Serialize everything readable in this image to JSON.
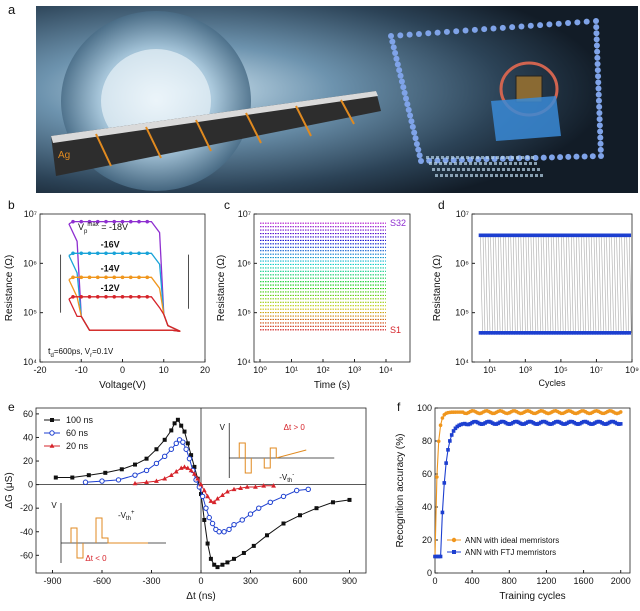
{
  "panels": {
    "a": {
      "label": "a",
      "left_text": "Ag"
    },
    "b": {
      "label": "b"
    },
    "c": {
      "label": "c"
    },
    "d": {
      "label": "d"
    },
    "e": {
      "label": "e"
    },
    "f": {
      "label": "f"
    }
  },
  "chart_data": [
    {
      "id": "b",
      "type": "line",
      "xlabel": "Voltage(V)",
      "ylabel": "Resistance (Ω)",
      "yscale": "log",
      "xlim": [
        -20,
        20
      ],
      "ylim": [
        10000,
        10000000
      ],
      "xticks": [
        "-20",
        "-10",
        "0",
        "10",
        "20"
      ],
      "yticks": [
        "10⁴",
        "10⁵",
        "10⁶",
        "10⁷"
      ],
      "annotations": [
        "V",
        "p",
        "max",
        " = -18V",
        "-16V",
        "-14V",
        "-12V",
        "t",
        "d",
        "=600ps, V",
        "r",
        "=0.1V"
      ],
      "series": [
        {
          "name": "-18V",
          "color": "#8e2fd0",
          "high": 7000000,
          "low": 42000
        },
        {
          "name": "-16V",
          "color": "#19a3d8",
          "high": 1600000,
          "low": 42000
        },
        {
          "name": "-14V",
          "color": "#f0961d",
          "high": 520000,
          "low": 42000
        },
        {
          "name": "-12V",
          "color": "#d6232a",
          "high": 210000,
          "low": 42000
        }
      ]
    },
    {
      "id": "c",
      "type": "scatter",
      "xlabel": "Time (s)",
      "ylabel": "Resistance (Ω)",
      "xscale": "log",
      "yscale": "log",
      "xlim": [
        1,
        10000
      ],
      "ylim": [
        10000,
        10000000
      ],
      "xticks": [
        "10⁰",
        "10¹",
        "10²",
        "10³",
        "10⁴"
      ],
      "yticks": [
        "10⁴",
        "10⁵",
        "10⁶",
        "10⁷"
      ],
      "levels": 32,
      "r_min": 45000,
      "r_max": 6500000,
      "labels_top": "S32",
      "labels_bottom": "S1"
    },
    {
      "id": "d",
      "type": "scatter",
      "xlabel": "Cycles",
      "ylabel": "Resistance (Ω)",
      "xscale": "log",
      "yscale": "log",
      "xlim": [
        1,
        1000000000
      ],
      "ylim": [
        10000,
        10000000
      ],
      "xticks": [
        "10¹",
        "10³",
        "10⁵",
        "10⁷",
        "10⁹"
      ],
      "yticks": [
        "10⁴",
        "10⁵",
        "10⁶",
        "10⁷"
      ],
      "r_high": 3700000,
      "r_low": 39000
    },
    {
      "id": "e",
      "type": "line",
      "xlabel": "Δt (ns)",
      "ylabel": "ΔG (μS)",
      "xlim": [
        -1000,
        1000
      ],
      "ylim": [
        -75,
        65
      ],
      "xticks": [
        "-900",
        "-600",
        "-300",
        "0",
        "300",
        "600",
        "900"
      ],
      "yticks": [
        "-60",
        "-40",
        "-20",
        "0",
        "20",
        "40",
        "60"
      ],
      "inset_texts": [
        "V",
        "Δt > 0",
        "V",
        "th",
        "-",
        "V",
        "V",
        "th",
        "+",
        "Δt < 0"
      ],
      "series": [
        {
          "name": "100 ns",
          "color": "#111111",
          "marker": "square",
          "x": [
            -880,
            -780,
            -680,
            -580,
            -480,
            -400,
            -330,
            -270,
            -220,
            -180,
            -160,
            -140,
            -120,
            -100,
            -80,
            -60,
            -40,
            -20,
            0,
            20,
            40,
            60,
            80,
            100,
            130,
            160,
            200,
            260,
            320,
            400,
            500,
            600,
            700,
            800,
            900
          ],
          "y": [
            6,
            6,
            8,
            10,
            13,
            17,
            22,
            30,
            38,
            46,
            52,
            55,
            50,
            45,
            35,
            25,
            15,
            5,
            -8,
            -30,
            -50,
            -63,
            -68,
            -70,
            -68,
            -66,
            -63,
            -58,
            -52,
            -43,
            -33,
            -26,
            -20,
            -15,
            -13
          ]
        },
        {
          "name": "60 ns",
          "color": "#1d3fd0",
          "marker": "circle",
          "x": [
            -700,
            -600,
            -500,
            -400,
            -330,
            -270,
            -220,
            -180,
            -150,
            -130,
            -110,
            -90,
            -70,
            -50,
            -30,
            -10,
            10,
            30,
            50,
            70,
            90,
            110,
            140,
            170,
            200,
            250,
            300,
            350,
            420,
            500,
            580,
            650
          ],
          "y": [
            2,
            3,
            4,
            8,
            12,
            18,
            24,
            30,
            35,
            38,
            36,
            30,
            22,
            12,
            4,
            -2,
            -10,
            -20,
            -28,
            -33,
            -38,
            -40,
            -40,
            -38,
            -34,
            -30,
            -25,
            -20,
            -15,
            -10,
            -5,
            -4
          ]
        },
        {
          "name": "20 ns",
          "color": "#d6232a",
          "marker": "triangle",
          "x": [
            -400,
            -330,
            -270,
            -220,
            -180,
            -150,
            -120,
            -100,
            -80,
            -60,
            -40,
            -20,
            0,
            20,
            40,
            60,
            80,
            100,
            130,
            160,
            200,
            240,
            280,
            330,
            380,
            440
          ],
          "y": [
            1,
            2,
            3,
            5,
            8,
            11,
            14,
            15,
            14,
            12,
            9,
            5,
            0,
            -5,
            -10,
            -14,
            -15,
            -12,
            -9,
            -6,
            -4,
            -3,
            -2,
            -2,
            -1,
            -1
          ]
        }
      ]
    },
    {
      "id": "f",
      "type": "line",
      "xlabel": "Training cycles",
      "ylabel": "Recognition accuracy (%)",
      "xlim": [
        0,
        2100
      ],
      "ylim": [
        0,
        100
      ],
      "xticks": [
        "0",
        "400",
        "800",
        "1200",
        "1600",
        "2000"
      ],
      "yticks": [
        "0",
        "20",
        "40",
        "60",
        "80",
        "100"
      ],
      "series": [
        {
          "name": "ANN with ideal memristors",
          "color": "#f0961d",
          "marker": "circle",
          "final": 97.5
        },
        {
          "name": "ANN with FTJ memristors",
          "color": "#1d3fd0",
          "marker": "square",
          "final": 91
        }
      ]
    }
  ]
}
